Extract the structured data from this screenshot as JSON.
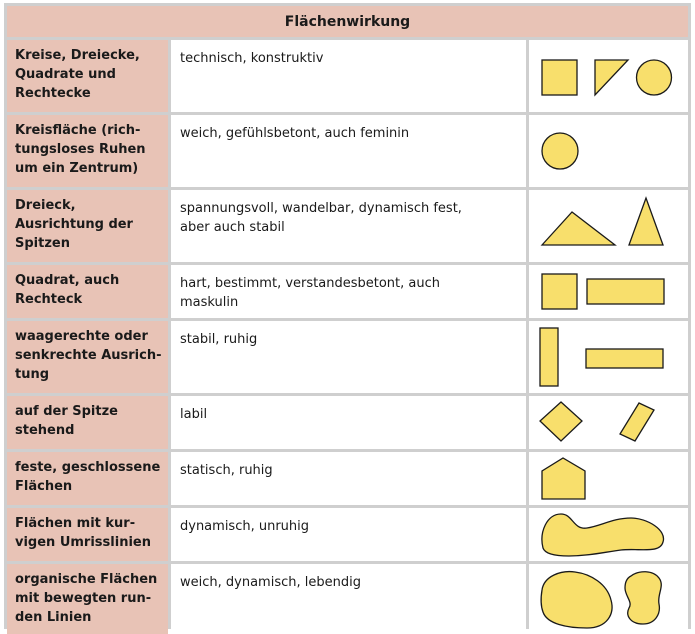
{
  "table": {
    "title": "Flächenwirkung",
    "rows": [
      {
        "label": "Kreise, Dreiecke,\nQuadrate und\nRechtecke",
        "desc": "technisch, konstruktiv",
        "shapes": [
          "square-icon",
          "right-triangle-icon",
          "circle-icon"
        ]
      },
      {
        "label": "Kreisfläche (rich-\ntungsloses Ruhen\num ein Zentrum)",
        "desc": "weich, gefühlsbetont, auch feminin",
        "shapes": [
          "circle-icon"
        ]
      },
      {
        "label": "Dreieck,\nAusrichtung der\nSpitzen",
        "desc": "spannungsvoll, wandelbar, dynamisch fest,\naber auch stabil",
        "shapes": [
          "flat-triangle-icon",
          "tall-triangle-icon"
        ]
      },
      {
        "label": "Quadrat, auch\nRechteck",
        "desc": "hart, bestimmt, verstandesbetont, auch\nmaskulin",
        "shapes": [
          "square-icon",
          "horizontal-rectangle-icon"
        ]
      },
      {
        "label": "waagerechte oder\nsenkrechte Ausrich-\ntung",
        "desc": "stabil, ruhig",
        "shapes": [
          "vertical-rectangle-icon",
          "horizontal-rectangle-icon"
        ]
      },
      {
        "label": "auf der Spitze\nstehend",
        "desc": "labil",
        "shapes": [
          "diamond-icon",
          "tilted-rectangle-icon"
        ]
      },
      {
        "label": "feste, geschlossene\nFlächen",
        "desc": "statisch, ruhig",
        "shapes": [
          "pentagon-icon"
        ]
      },
      {
        "label": "Flächen mit kur-\nvigen Umrisslinien",
        "desc": "dynamisch, unruhig",
        "shapes": [
          "wavy-blob-icon"
        ]
      },
      {
        "label": "organische Flächen\nmit bewegten run-\nden Linien",
        "desc": "weich, dynamisch, lebendig",
        "shapes": [
          "organic-blob-icon",
          "organic-blob-small-icon"
        ]
      }
    ]
  },
  "colors": {
    "label_bg": "#e8c3b6",
    "shape_fill": "#f8df6c",
    "grid": "#cfcfcf"
  }
}
